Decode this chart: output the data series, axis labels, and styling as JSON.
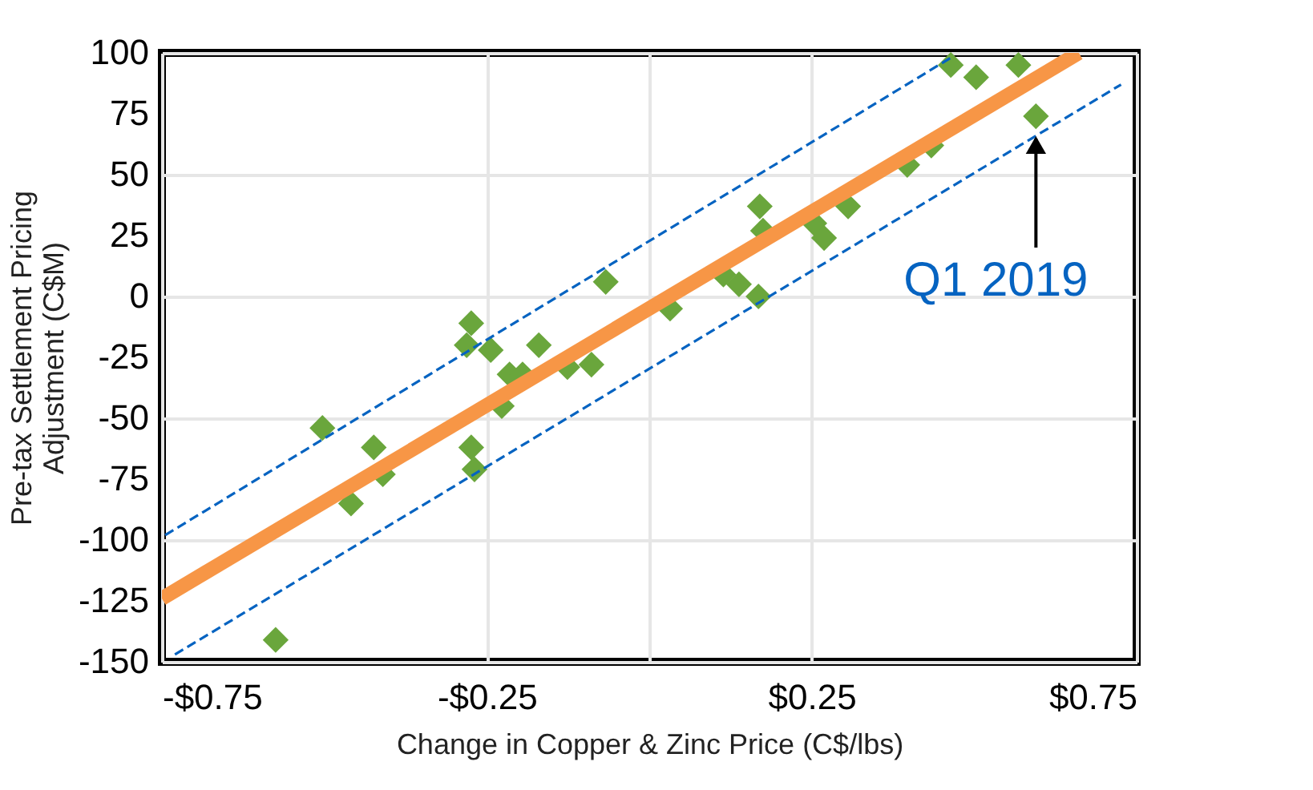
{
  "chart_data": {
    "type": "scatter",
    "xlabel": "Change in Copper & Zinc Price (C$/lbs)",
    "ylabel": "Pre-tax Settlement Pricing\nAdjustment (C$M)",
    "xlim": [
      -0.75,
      0.75
    ],
    "xticks": [
      {
        "value": -0.75,
        "label": "-$0.75"
      },
      {
        "value": -0.25,
        "label": "-$0.25"
      },
      {
        "value": 0,
        "label": null
      },
      {
        "value": 0.25,
        "label": "$0.25"
      },
      {
        "value": 0.75,
        "label": "$0.75"
      }
    ],
    "ylim": [
      -150,
      100
    ],
    "yticks": [
      -150,
      -125,
      -100,
      -75,
      -50,
      -25,
      0,
      25,
      50,
      75,
      100
    ],
    "grid": true,
    "series": [
      {
        "marker": "diamond",
        "color": "#6aa63c",
        "x": [
          -0.067,
          -0.274,
          -0.281,
          -0.244,
          -0.17,
          -0.215,
          -0.195,
          -0.126,
          -0.089,
          -0.227,
          -0.503,
          -0.424,
          -0.41,
          -0.459,
          -0.274,
          -0.269,
          -0.575,
          0.032,
          0.114,
          0.138,
          0.168,
          0.17,
          0.175,
          0.254,
          0.269,
          0.306,
          0.397,
          0.434,
          0.464,
          0.503,
          0.568,
          0.595
        ],
        "values": [
          6,
          -11,
          -20,
          -22,
          -20,
          -32,
          -32,
          -29,
          -28,
          -45,
          -54,
          -62,
          -73,
          -85,
          -62,
          -71,
          -141,
          -5,
          9,
          5,
          0,
          37,
          27,
          30,
          24,
          37,
          54,
          62,
          95,
          90,
          95,
          74
        ]
      },
      {
        "type": "line",
        "line_style": "solid",
        "color": "#f79646",
        "x": [
          -0.75,
          0.661
        ],
        "values": [
          -124,
          100
        ]
      },
      {
        "type": "line",
        "line_style": "dashed",
        "color": "#0563c1",
        "x": [
          -0.745,
          0.464
        ],
        "values": [
          -98,
          98
        ]
      },
      {
        "type": "line",
        "line_style": "dashed",
        "color": "#0563c1",
        "x": [
          -0.73,
          0.726
        ],
        "values": [
          -147,
          87
        ]
      }
    ],
    "annotations": [
      {
        "text": "Q1 2019",
        "x": 0.595,
        "y": 74
      }
    ]
  }
}
